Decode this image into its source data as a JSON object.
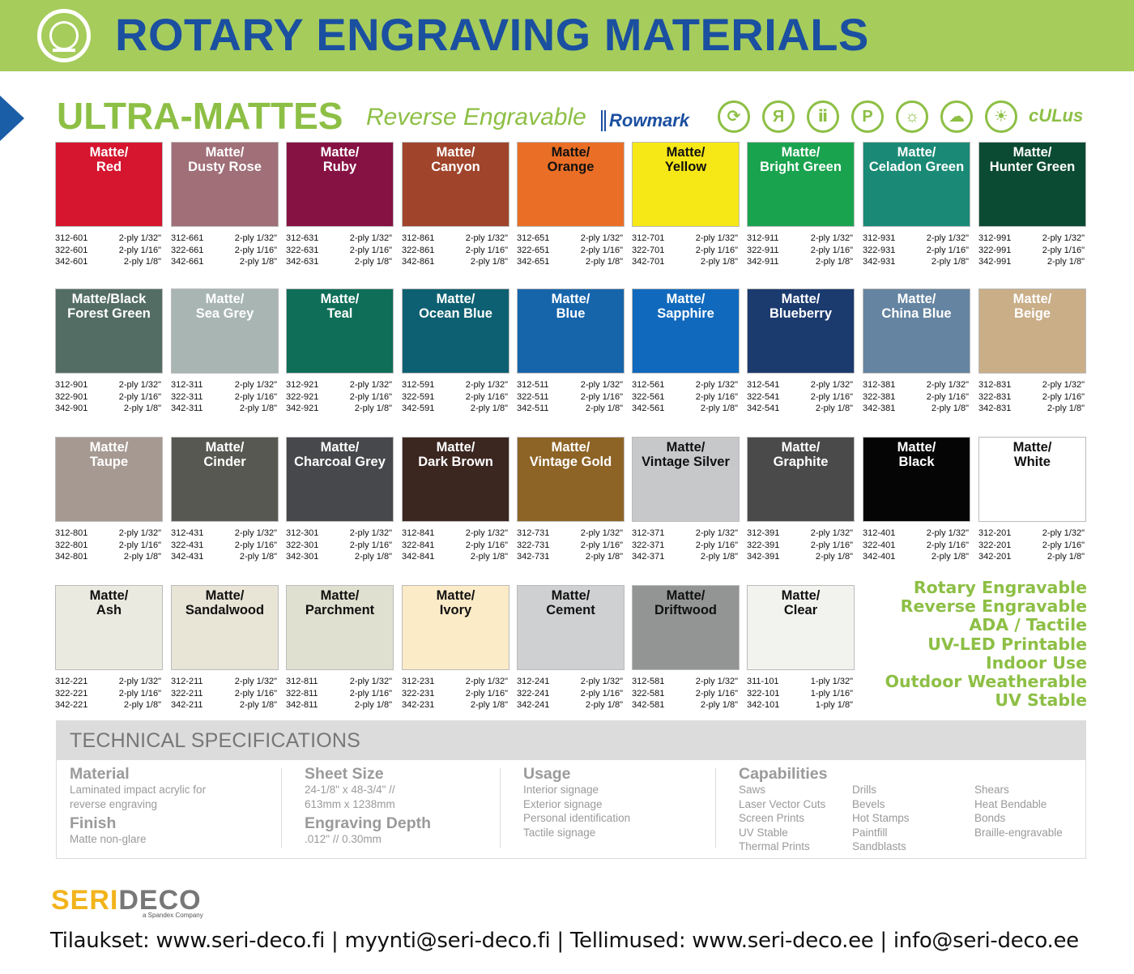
{
  "header": {
    "title": "ROTARY ENGRAVING MATERIALS",
    "logo_icon": "rotary-engraving-logo-icon"
  },
  "subheader": {
    "title": "ULTRA-MATTES",
    "subtitle": "Reverse Engravable",
    "brand": "Rowmark",
    "cert_icons": [
      "rotary-icon",
      "reverse-icon",
      "ada-icon",
      "printable-icon",
      "indoor-icon",
      "weather-icon",
      "sun-icon"
    ],
    "ul_mark": "cULus"
  },
  "tiles": [
    {
      "l1": "Matte/",
      "l2": "Red",
      "bg": "#d5162e",
      "fg": "#ffffff",
      "codes": [
        [
          "312-601",
          "2-ply 1/32\""
        ],
        [
          "322-601",
          "2-ply 1/16\""
        ],
        [
          "342-601",
          "2-ply 1/8\""
        ]
      ]
    },
    {
      "l1": "Matte/",
      "l2": "Dusty Rose",
      "bg": "#a06f77",
      "fg": "#ffffff",
      "codes": [
        [
          "312-661",
          "2-ply 1/32\""
        ],
        [
          "322-661",
          "2-ply 1/16\""
        ],
        [
          "342-661",
          "2-ply 1/8\""
        ]
      ]
    },
    {
      "l1": "Matte/",
      "l2": "Ruby",
      "bg": "#861244",
      "fg": "#ffffff",
      "codes": [
        [
          "312-631",
          "2-ply 1/32\""
        ],
        [
          "322-631",
          "2-ply 1/16\""
        ],
        [
          "342-631",
          "2-ply 1/8\""
        ]
      ]
    },
    {
      "l1": "Matte/",
      "l2": "Canyon",
      "bg": "#a0452c",
      "fg": "#ffffff",
      "codes": [
        [
          "312-861",
          "2-ply 1/32\""
        ],
        [
          "322-861",
          "2-ply 1/16\""
        ],
        [
          "342-861",
          "2-ply 1/8\""
        ]
      ]
    },
    {
      "l1": "Matte/",
      "l2": "Orange",
      "bg": "#ea6e25",
      "fg": "#111111",
      "codes": [
        [
          "312-651",
          "2-ply 1/32\""
        ],
        [
          "322-651",
          "2-ply 1/16\""
        ],
        [
          "342-651",
          "2-ply 1/8\""
        ]
      ]
    },
    {
      "l1": "Matte/",
      "l2": "Yellow",
      "bg": "#f6e716",
      "fg": "#111111",
      "codes": [
        [
          "312-701",
          "2-ply 1/32\""
        ],
        [
          "322-701",
          "2-ply 1/16\""
        ],
        [
          "342-701",
          "2-ply 1/8\""
        ]
      ]
    },
    {
      "l1": "Matte/",
      "l2": "Bright Green",
      "bg": "#1aa34f",
      "fg": "#ffffff",
      "codes": [
        [
          "312-911",
          "2-ply 1/32\""
        ],
        [
          "322-911",
          "2-ply 1/16\""
        ],
        [
          "342-911",
          "2-ply 1/8\""
        ]
      ]
    },
    {
      "l1": "Matte/",
      "l2": "Celadon Green",
      "bg": "#1a8a76",
      "fg": "#ffffff",
      "codes": [
        [
          "312-931",
          "2-ply 1/32\""
        ],
        [
          "322-931",
          "2-ply 1/16\""
        ],
        [
          "342-931",
          "2-ply 1/8\""
        ]
      ]
    },
    {
      "l1": "Matte/",
      "l2": "Hunter Green",
      "bg": "#0b4a33",
      "fg": "#ffffff",
      "codes": [
        [
          "312-991",
          "2-ply 1/32\""
        ],
        [
          "322-991",
          "2-ply 1/16\""
        ],
        [
          "342-991",
          "2-ply 1/8\""
        ]
      ]
    },
    {
      "l1": "Matte/Black",
      "l2": "Forest Green",
      "bg": "#536d64",
      "fg": "#ffffff",
      "codes": [
        [
          "312-901",
          "2-ply 1/32\""
        ],
        [
          "322-901",
          "2-ply 1/16\""
        ],
        [
          "342-901",
          "2-ply 1/8\""
        ]
      ]
    },
    {
      "l1": "Matte/",
      "l2": "Sea Grey",
      "bg": "#a8b5b3",
      "fg": "#ffffff",
      "codes": [
        [
          "312-311",
          "2-ply 1/32\""
        ],
        [
          "322-311",
          "2-ply 1/16\""
        ],
        [
          "342-311",
          "2-ply 1/8\""
        ]
      ]
    },
    {
      "l1": "Matte/",
      "l2": "Teal",
      "bg": "#0f6e58",
      "fg": "#ffffff",
      "codes": [
        [
          "312-921",
          "2-ply 1/32\""
        ],
        [
          "322-921",
          "2-ply 1/16\""
        ],
        [
          "342-921",
          "2-ply 1/8\""
        ]
      ]
    },
    {
      "l1": "Matte/",
      "l2": "Ocean Blue",
      "bg": "#0d6071",
      "fg": "#ffffff",
      "codes": [
        [
          "312-591",
          "2-ply 1/32\""
        ],
        [
          "322-591",
          "2-ply 1/16\""
        ],
        [
          "342-591",
          "2-ply 1/8\""
        ]
      ]
    },
    {
      "l1": "Matte/",
      "l2": "Blue",
      "bg": "#1665ab",
      "fg": "#ffffff",
      "codes": [
        [
          "312-511",
          "2-ply 1/32\""
        ],
        [
          "322-511",
          "2-ply 1/16\""
        ],
        [
          "342-511",
          "2-ply 1/8\""
        ]
      ]
    },
    {
      "l1": "Matte/",
      "l2": "Sapphire",
      "bg": "#1169bd",
      "fg": "#ffffff",
      "codes": [
        [
          "312-561",
          "2-ply 1/32\""
        ],
        [
          "322-561",
          "2-ply 1/16\""
        ],
        [
          "342-561",
          "2-ply 1/8\""
        ]
      ]
    },
    {
      "l1": "Matte/",
      "l2": "Blueberry",
      "bg": "#1b3a6e",
      "fg": "#ffffff",
      "codes": [
        [
          "312-541",
          "2-ply 1/32\""
        ],
        [
          "322-541",
          "2-ply 1/16\""
        ],
        [
          "342-541",
          "2-ply 1/8\""
        ]
      ]
    },
    {
      "l1": "Matte/",
      "l2": "China Blue",
      "bg": "#6584a1",
      "fg": "#ffffff",
      "codes": [
        [
          "312-381",
          "2-ply 1/32\""
        ],
        [
          "322-381",
          "2-ply 1/16\""
        ],
        [
          "342-381",
          "2-ply 1/8\""
        ]
      ]
    },
    {
      "l1": "Matte/",
      "l2": "Beige",
      "bg": "#c9ae88",
      "fg": "#ffffff",
      "codes": [
        [
          "312-831",
          "2-ply 1/32\""
        ],
        [
          "322-831",
          "2-ply 1/16\""
        ],
        [
          "342-831",
          "2-ply 1/8\""
        ]
      ]
    },
    {
      "l1": "Matte/",
      "l2": "Taupe",
      "bg": "#a69992",
      "fg": "#ffffff",
      "codes": [
        [
          "312-801",
          "2-ply 1/32\""
        ],
        [
          "322-801",
          "2-ply 1/16\""
        ],
        [
          "342-801",
          "2-ply 1/8\""
        ]
      ]
    },
    {
      "l1": "Matte/",
      "l2": "Cinder",
      "bg": "#585852",
      "fg": "#ffffff",
      "codes": [
        [
          "312-431",
          "2-ply 1/32\""
        ],
        [
          "322-431",
          "2-ply 1/16\""
        ],
        [
          "342-431",
          "2-ply 1/8\""
        ]
      ]
    },
    {
      "l1": "Matte/",
      "l2": "Charcoal Grey",
      "bg": "#47484b",
      "fg": "#ffffff",
      "codes": [
        [
          "312-301",
          "2-ply 1/32\""
        ],
        [
          "322-301",
          "2-ply 1/16\""
        ],
        [
          "342-301",
          "2-ply 1/8\""
        ]
      ]
    },
    {
      "l1": "Matte/",
      "l2": "Dark Brown",
      "bg": "#3b2620",
      "fg": "#ffffff",
      "codes": [
        [
          "312-841",
          "2-ply 1/32\""
        ],
        [
          "322-841",
          "2-ply 1/16\""
        ],
        [
          "342-841",
          "2-ply 1/8\""
        ]
      ]
    },
    {
      "l1": "Matte/",
      "l2": "Vintage Gold",
      "bg": "#8d6426",
      "fg": "#ffffff",
      "codes": [
        [
          "312-731",
          "2-ply 1/32\""
        ],
        [
          "322-731",
          "2-ply 1/16\""
        ],
        [
          "342-731",
          "2-ply 1/8\""
        ]
      ]
    },
    {
      "l1": "Matte/",
      "l2": "Vintage Silver",
      "bg": "#c7c8ca",
      "fg": "#111111",
      "codes": [
        [
          "312-371",
          "2-ply 1/32\""
        ],
        [
          "322-371",
          "2-ply 1/16\""
        ],
        [
          "342-371",
          "2-ply 1/8\""
        ]
      ]
    },
    {
      "l1": "Matte/",
      "l2": "Graphite",
      "bg": "#4a4a4a",
      "fg": "#ffffff",
      "codes": [
        [
          "312-391",
          "2-ply 1/32\""
        ],
        [
          "322-391",
          "2-ply 1/16\""
        ],
        [
          "342-391",
          "2-ply 1/8\""
        ]
      ]
    },
    {
      "l1": "Matte/",
      "l2": "Black",
      "bg": "#050505",
      "fg": "#ffffff",
      "codes": [
        [
          "312-401",
          "2-ply 1/32\""
        ],
        [
          "322-401",
          "2-ply 1/16\""
        ],
        [
          "342-401",
          "2-ply 1/8\""
        ]
      ]
    },
    {
      "l1": "Matte/",
      "l2": "White",
      "bg": "#ffffff",
      "fg": "#111111",
      "codes": [
        [
          "312-201",
          "2-ply 1/32\""
        ],
        [
          "322-201",
          "2-ply 1/16\""
        ],
        [
          "342-201",
          "2-ply 1/8\""
        ]
      ]
    },
    {
      "l1": "Matte/",
      "l2": "Ash",
      "bg": "#ebeae0",
      "fg": "#111111",
      "codes": [
        [
          "312-221",
          "2-ply 1/32\""
        ],
        [
          "322-221",
          "2-ply 1/16\""
        ],
        [
          "342-221",
          "2-ply 1/8\""
        ]
      ]
    },
    {
      "l1": "Matte/",
      "l2": "Sandalwood",
      "bg": "#e8e4d6",
      "fg": "#111111",
      "codes": [
        [
          "312-211",
          "2-ply 1/32\""
        ],
        [
          "322-211",
          "2-ply 1/16\""
        ],
        [
          "342-211",
          "2-ply 1/8\""
        ]
      ]
    },
    {
      "l1": "Matte/",
      "l2": "Parchment",
      "bg": "#e0e0d0",
      "fg": "#111111",
      "codes": [
        [
          "312-811",
          "2-ply 1/32\""
        ],
        [
          "322-811",
          "2-ply 1/16\""
        ],
        [
          "342-811",
          "2-ply 1/8\""
        ]
      ]
    },
    {
      "l1": "Matte/",
      "l2": "Ivory",
      "bg": "#fcebc7",
      "fg": "#111111",
      "codes": [
        [
          "312-231",
          "2-ply 1/32\""
        ],
        [
          "322-231",
          "2-ply 1/16\""
        ],
        [
          "342-231",
          "2-ply 1/8\""
        ]
      ]
    },
    {
      "l1": "Matte/",
      "l2": "Cement",
      "bg": "#cfd0d2",
      "fg": "#111111",
      "codes": [
        [
          "312-241",
          "2-ply 1/32\""
        ],
        [
          "322-241",
          "2-ply 1/16\""
        ],
        [
          "342-241",
          "2-ply 1/8\""
        ]
      ]
    },
    {
      "l1": "Matte/",
      "l2": "Driftwood",
      "bg": "#939494",
      "fg": "#111111",
      "codes": [
        [
          "312-581",
          "2-ply 1/32\""
        ],
        [
          "322-581",
          "2-ply 1/16\""
        ],
        [
          "342-581",
          "2-ply 1/8\""
        ]
      ]
    },
    {
      "l1": "Matte/",
      "l2": "Clear",
      "bg": "#f2f2ef",
      "fg": "#111111",
      "codes": [
        [
          "311-101",
          "1-ply 1/32\""
        ],
        [
          "322-101",
          "1-ply 1/16\""
        ],
        [
          "342-101",
          "1-ply 1/8\""
        ]
      ]
    }
  ],
  "features": [
    "Rotary Engravable",
    "Reverse Engravable",
    "ADA / Tactile",
    "UV-LED Printable",
    "Indoor Use",
    "Outdoor Weatherable",
    "UV Stable"
  ],
  "specs": {
    "title": "TECHNICAL SPECIFICATIONS",
    "material_h": "Material",
    "material": [
      "Laminated impact acrylic for",
      "reverse engraving"
    ],
    "finish_h": "Finish",
    "finish": [
      "Matte non-glare"
    ],
    "sheet_h": "Sheet Size",
    "sheet": [
      "24-1/8\" x 48-3/4\" //",
      "613mm x 1238mm"
    ],
    "depth_h": "Engraving Depth",
    "depth": [
      ".012\"  //  0.30mm"
    ],
    "usage_h": "Usage",
    "usage": [
      "Interior signage",
      "Exterior signage",
      "Personal identification",
      "Tactile signage"
    ],
    "cap_h": "Capabilities",
    "cap1": [
      "Saws",
      "Laser Vector Cuts",
      "Screen Prints",
      "UV Stable",
      "Thermal Prints"
    ],
    "cap2": [
      "Drills",
      "Bevels",
      "Hot Stamps",
      "Paintfill",
      "Sandblasts"
    ],
    "cap3": [
      "Shears",
      "Heat Bendable",
      "Bonds",
      "Braille-engravable"
    ]
  },
  "footer": {
    "logo_a": "SERI",
    "logo_b": "DECO",
    "tagline": "a Spandex Company",
    "contact": "Tilaukset:  www.seri-deco.fi   |   myynti@seri-deco.fi   |   Tellimused: www.seri-deco.ee   |   info@seri-deco.ee"
  }
}
